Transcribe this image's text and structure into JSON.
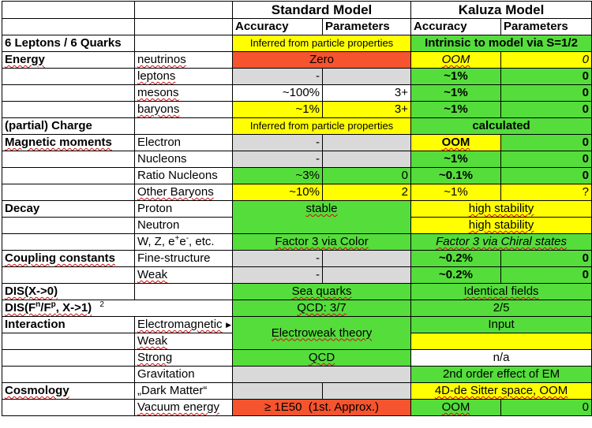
{
  "header": {
    "standard_model": "Standard Model",
    "kaluza_model": "Kaluza Model",
    "accuracy": "Accuracy",
    "parameters": "Parameters"
  },
  "rows": {
    "leptons_quarks": {
      "label": "6 Leptons / 6 Quarks",
      "sm": "Inferred from particle properties",
      "km": "Intrinsic to model via S=1/2"
    },
    "energy": {
      "label": "Energy",
      "neutrinos": {
        "sub": "neutrinos",
        "sm_acc": "Zero",
        "km_acc": "OOM",
        "km_par": "0"
      },
      "leptons": {
        "sub": "leptons",
        "sm_acc": "-",
        "km_acc": "~1%",
        "km_par": "0"
      },
      "mesons": {
        "sub": "mesons",
        "sm_acc": "~100%",
        "sm_par": "3+",
        "km_acc": "~1%",
        "km_par": "0"
      },
      "baryons": {
        "sub": "baryons",
        "sm_acc": "~1%",
        "sm_par": "3+",
        "km_acc": "~1%",
        "km_par": "0"
      }
    },
    "charge": {
      "label": "(partial) Charge",
      "sm": "Inferred from particle properties",
      "km": "calculated"
    },
    "magnetic": {
      "label": "Magnetic moments",
      "electron": {
        "sub": "Electron",
        "sm_acc": "-",
        "km_acc": "OOM",
        "km_par": "0"
      },
      "nucleons": {
        "sub": "Nucleons",
        "sm_acc": "-",
        "km_acc": "~1%",
        "km_par": "0"
      },
      "ratio": {
        "sub": "Ratio Nucleons",
        "sm_acc": "~3%",
        "sm_par": "0",
        "km_acc": "~0.1%",
        "km_par": "0"
      },
      "other": {
        "sub": "Other Baryons",
        "sm_acc": "~10%",
        "sm_par": "2",
        "km_acc": "~1%",
        "km_par": "?"
      }
    },
    "decay": {
      "label": "Decay",
      "proton": {
        "sub": "Proton",
        "sm": "stable",
        "km": "high stability"
      },
      "neutron": {
        "sub": "Neutron",
        "km": "high stability"
      },
      "wz": {
        "sub_pre": "W, Z, e",
        "sub_sup1": "+",
        "sub_mid": "e",
        "sub_sup2": "-",
        "sub_post": ", etc.",
        "sm": "Factor 3 via Color",
        "km": "Factor 3 via Chiral states"
      }
    },
    "coupling": {
      "label": "Coupling constants",
      "fine": {
        "sub": "Fine-structure",
        "sm_acc": "-",
        "km_acc": "~0.2%",
        "km_par": "0"
      },
      "weak": {
        "sub": "Weak",
        "sm_acc": "-",
        "km_acc": "~0.2%",
        "km_par": "0"
      }
    },
    "dis1": {
      "label": "DIS(X->0)",
      "sm": "Sea quarks",
      "km": "Identical fields"
    },
    "dis2": {
      "label_a": "DIS(F",
      "label_sup1": "n",
      "label_b": "/F",
      "label_sup2": "p",
      "label_c": ", X->1)",
      "note": "2",
      "sm": "QCD: 3/7",
      "km": "2/5"
    },
    "interaction": {
      "label": "Interaction",
      "em": {
        "sub": "Electromagnetic",
        "km": "Input"
      },
      "weak": {
        "sub": "Weak"
      },
      "ew_sm": "Electroweak theory",
      "strong": {
        "sub": "Strong",
        "sm": "QCD",
        "km": "n/a"
      },
      "grav": {
        "sub": "Gravitation",
        "km": "2nd order effect of EM"
      }
    },
    "cosmology": {
      "label": "Cosmology",
      "dark": {
        "sub": "„Dark Matter“",
        "km": "4D-de Sitter space, OOM"
      },
      "vacuum": {
        "sub": "Vacuum energy",
        "sm": "≥ 1E50  (1st. Approx.)",
        "km_acc": "OOM",
        "km_par": "0"
      }
    }
  },
  "colors": {
    "yellow": "#ffff00",
    "green": "#55dd3c",
    "orange": "#f5542e",
    "gray": "#d9d9d9"
  }
}
